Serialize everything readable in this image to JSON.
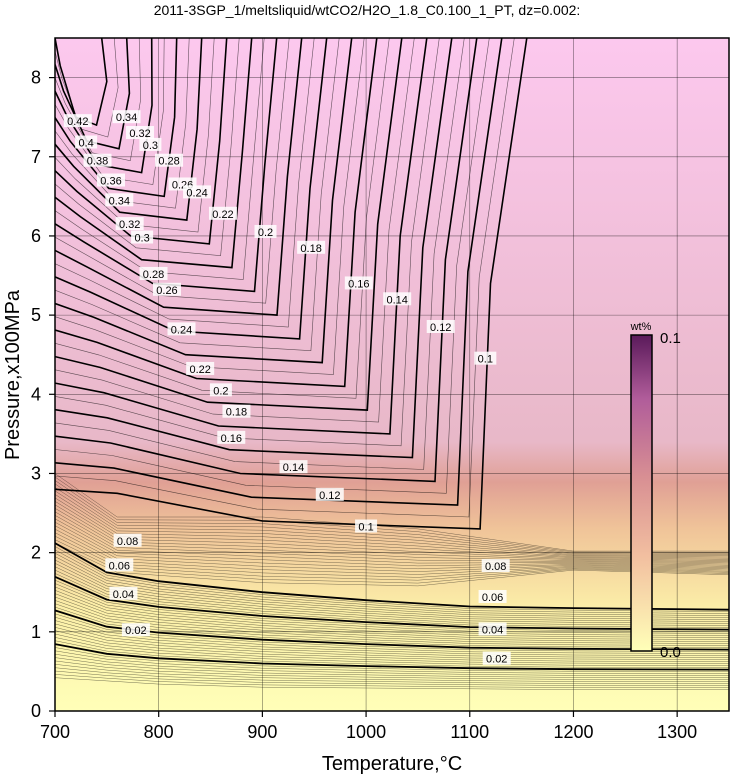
{
  "chart_data": {
    "type": "contour",
    "title": "2011-3SGP_1/meltsliquid/wtCO2/H2O_1.8_C0.100_1_PT, dz=0.002:",
    "xlabel": "Temperature,°C",
    "ylabel": "Pressure,x100MPa",
    "xlim": [
      700,
      1350
    ],
    "ylim": [
      0,
      8.5
    ],
    "x_ticks": [
      "700",
      "800",
      "900",
      "1000",
      "1100",
      "1200",
      "1300"
    ],
    "y_ticks": [
      "0",
      "1",
      "2",
      "3",
      "4",
      "5",
      "6",
      "7",
      "8"
    ],
    "grid": true,
    "colorbar": {
      "unit": "wt%",
      "min_label": "0.0",
      "max_label": "0.1",
      "colors": [
        "#ffffb8",
        "#f2bfa0",
        "#d88f93",
        "#b05c9a",
        "#5a1a5a"
      ]
    },
    "saturated_region_color": "#fcc8ee",
    "contour_labels": [
      {
        "text": "0.02",
        "x": 778,
        "y": 1.02
      },
      {
        "text": "0.04",
        "x": 766,
        "y": 1.48
      },
      {
        "text": "0.06",
        "x": 762,
        "y": 1.84
      },
      {
        "text": "0.08",
        "x": 770,
        "y": 2.15
      },
      {
        "text": "0.1",
        "x": 1000,
        "y": 2.33
      },
      {
        "text": "0.12",
        "x": 965,
        "y": 2.73
      },
      {
        "text": "0.14",
        "x": 930,
        "y": 3.08
      },
      {
        "text": "0.16",
        "x": 870,
        "y": 3.45
      },
      {
        "text": "0.18",
        "x": 875,
        "y": 3.78
      },
      {
        "text": "0.2",
        "x": 860,
        "y": 4.05
      },
      {
        "text": "0.22",
        "x": 840,
        "y": 4.32
      },
      {
        "text": "0.24",
        "x": 822,
        "y": 4.82
      },
      {
        "text": "0.26",
        "x": 808,
        "y": 5.32
      },
      {
        "text": "0.28",
        "x": 795,
        "y": 5.52
      },
      {
        "text": "0.3",
        "x": 784,
        "y": 5.98
      },
      {
        "text": "0.32",
        "x": 772,
        "y": 6.15
      },
      {
        "text": "0.34",
        "x": 762,
        "y": 6.45
      },
      {
        "text": "0.36",
        "x": 754,
        "y": 6.7
      },
      {
        "text": "0.38",
        "x": 741,
        "y": 6.95
      },
      {
        "text": "0.4",
        "x": 730,
        "y": 7.18
      },
      {
        "text": "0.42",
        "x": 722,
        "y": 7.45
      },
      {
        "text": "0.34",
        "x": 769,
        "y": 7.5
      },
      {
        "text": "0.32",
        "x": 782,
        "y": 7.3
      },
      {
        "text": "0.3",
        "x": 792,
        "y": 7.15
      },
      {
        "text": "0.28",
        "x": 810,
        "y": 6.95
      },
      {
        "text": "0.26",
        "x": 823,
        "y": 6.65
      },
      {
        "text": "0.24",
        "x": 837,
        "y": 6.55
      },
      {
        "text": "0.22",
        "x": 862,
        "y": 6.28
      },
      {
        "text": "0.2",
        "x": 903,
        "y": 6.05
      },
      {
        "text": "0.18",
        "x": 947,
        "y": 5.85
      },
      {
        "text": "0.16",
        "x": 993,
        "y": 5.4
      },
      {
        "text": "0.14",
        "x": 1030,
        "y": 5.2
      },
      {
        "text": "0.12",
        "x": 1072,
        "y": 4.85
      },
      {
        "text": "0.1",
        "x": 1115,
        "y": 4.45
      },
      {
        "text": "0.08",
        "x": 1125,
        "y": 1.83
      },
      {
        "text": "0.06",
        "x": 1122,
        "y": 1.44
      },
      {
        "text": "0.04",
        "x": 1122,
        "y": 1.03
      },
      {
        "text": "0.02",
        "x": 1126,
        "y": 0.66
      }
    ]
  }
}
